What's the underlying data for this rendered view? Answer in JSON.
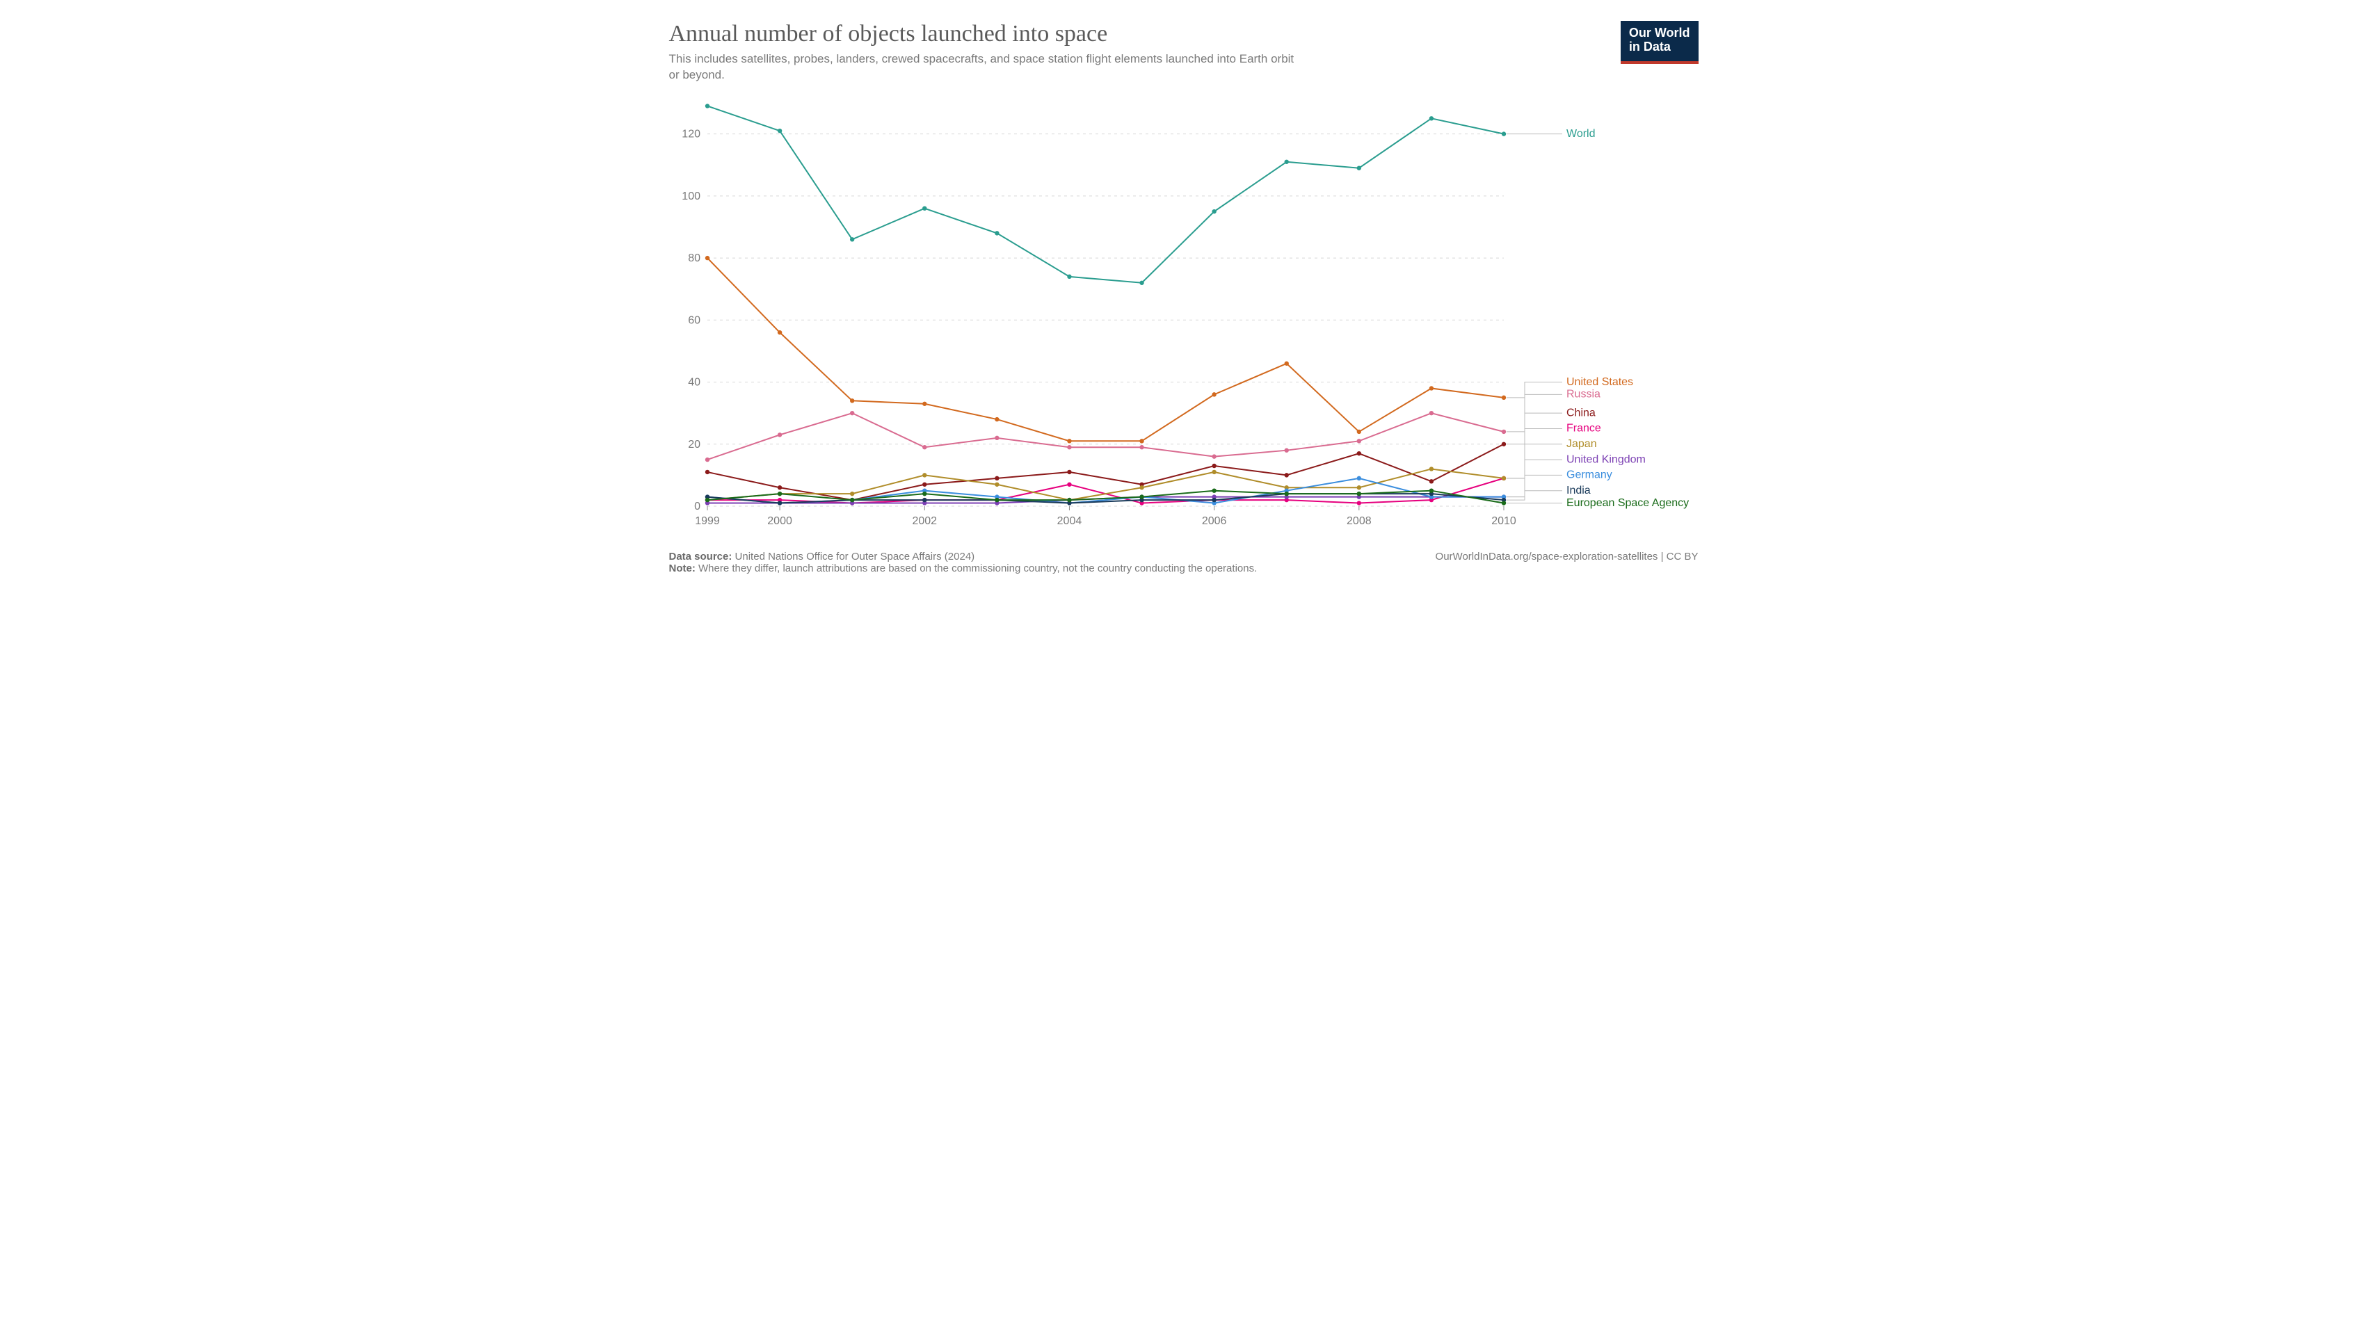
{
  "title": "Annual number of objects launched into space",
  "subtitle": "This includes satellites, probes, landers, crewed spacecrafts, and space station flight elements launched into Earth orbit or beyond.",
  "logo_line1": "Our World",
  "logo_line2": "in Data",
  "chart": {
    "type": "line",
    "years": [
      1999,
      2000,
      2001,
      2002,
      2003,
      2004,
      2005,
      2006,
      2007,
      2008,
      2009,
      2010
    ],
    "x_ticks": [
      1999,
      2000,
      2002,
      2004,
      2006,
      2008,
      2010
    ],
    "y_ticks": [
      0,
      20,
      40,
      60,
      80,
      100,
      120
    ],
    "ylim": [
      0,
      130
    ],
    "xlim": [
      1999,
      2010
    ],
    "grid_color": "#d8d8d8",
    "axis_color": "#888888",
    "background": "#ffffff",
    "tick_fontsize": 16,
    "label_fontsize": 16,
    "line_width": 2,
    "marker_radius": 3.2,
    "series": [
      {
        "name": "World",
        "color": "#2a9d8f",
        "label_y": 120,
        "values": [
          129,
          121,
          86,
          96,
          88,
          74,
          72,
          95,
          111,
          109,
          125,
          120
        ]
      },
      {
        "name": "United States",
        "color": "#d2691e",
        "label_y": 40,
        "values": [
          80,
          56,
          34,
          33,
          28,
          21,
          21,
          36,
          46,
          24,
          38,
          35
        ]
      },
      {
        "name": "Russia",
        "color": "#d96b90",
        "label_y": 36,
        "values": [
          15,
          23,
          30,
          19,
          22,
          19,
          19,
          16,
          18,
          21,
          30,
          24
        ]
      },
      {
        "name": "China",
        "color": "#8b1a1a",
        "label_y": 30,
        "values": [
          11,
          6,
          2,
          7,
          9,
          11,
          7,
          13,
          10,
          17,
          8,
          20
        ]
      },
      {
        "name": "France",
        "color": "#e6007e",
        "label_y": 25,
        "values": [
          2,
          2,
          1,
          2,
          2,
          7,
          1,
          2,
          2,
          1,
          2,
          9
        ]
      },
      {
        "name": "Japan",
        "color": "#b08d2a",
        "label_y": 20,
        "values": [
          2,
          4,
          4,
          10,
          7,
          2,
          6,
          11,
          6,
          6,
          12,
          9
        ]
      },
      {
        "name": "United Kingdom",
        "color": "#7b3fb3",
        "label_y": 15,
        "values": [
          1,
          1,
          1,
          1,
          1,
          2,
          3,
          3,
          3,
          3,
          3,
          3
        ]
      },
      {
        "name": "Germany",
        "color": "#3b8ede",
        "label_y": 10,
        "values": [
          3,
          1,
          2,
          5,
          3,
          1,
          3,
          1,
          5,
          9,
          3,
          3
        ]
      },
      {
        "name": "India",
        "color": "#1a3a5a",
        "label_y": 5,
        "values": [
          3,
          1,
          2,
          2,
          2,
          1,
          2,
          2,
          4,
          4,
          4,
          2
        ]
      },
      {
        "name": "European Space Agency",
        "color": "#1a6b1a",
        "label_y": 1,
        "values": [
          2,
          4,
          2,
          4,
          2,
          2,
          3,
          5,
          4,
          4,
          5,
          1
        ]
      }
    ]
  },
  "footer": {
    "source_label": "Data source:",
    "source_text": "United Nations Office for Outer Space Affairs (2024)",
    "attribution": "OurWorldInData.org/space-exploration-satellites | CC BY",
    "note_label": "Note:",
    "note_text": "Where they differ, launch attributions are based on the commissioning country, not the country conducting the operations."
  }
}
